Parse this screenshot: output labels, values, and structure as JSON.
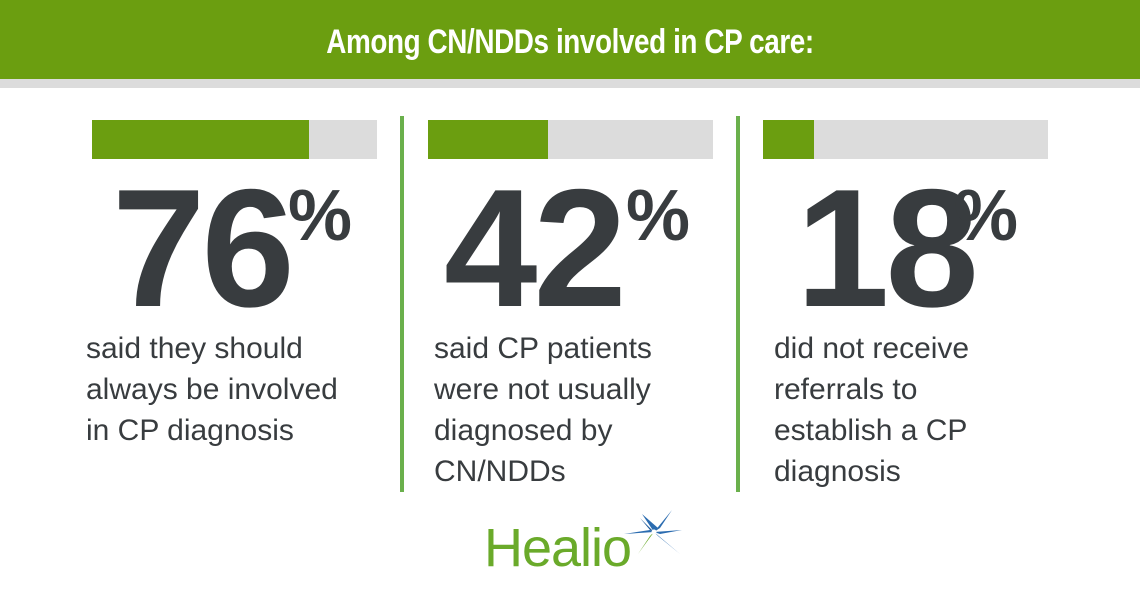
{
  "header": {
    "title": "Among CN/NDDs involved in CP care:"
  },
  "colors": {
    "accent_green": "#6b9e10",
    "divider_green": "#6ab04c",
    "bar_track": "#dcdcdc",
    "text_dark": "#383c3f",
    "logo_green": "#6aaa2a",
    "logo_blue": "#2b6cb0"
  },
  "stats": [
    {
      "value": "76",
      "unit": "%",
      "percent": 76,
      "lines": [
        "said they should",
        "always be involved",
        "in CP diagnosis"
      ]
    },
    {
      "value": "42",
      "unit": "%",
      "percent": 42,
      "lines": [
        "said CP patients",
        "were not usually",
        "diagnosed by",
        "CN/NDDs"
      ]
    },
    {
      "value": "18",
      "unit": "%",
      "percent": 18,
      "lines": [
        "did not receive",
        "referrals to",
        "establish a CP",
        "diagnosis"
      ]
    }
  ],
  "logo": {
    "text": "Healio",
    "icon": "compass-star-icon"
  },
  "chart_data": {
    "type": "bar",
    "title": "Among CN/NDDs involved in CP care:",
    "orientation": "horizontal",
    "categories": [
      "said they should always be involved in CP diagnosis",
      "said CP patients were not usually diagnosed by CN/NDDs",
      "did not receive referrals to establish a CP diagnosis"
    ],
    "values": [
      76,
      42,
      18
    ],
    "unit": "%",
    "ylim": [
      0,
      100
    ],
    "xlabel": "",
    "ylabel": "",
    "grid": false,
    "legend": null
  }
}
